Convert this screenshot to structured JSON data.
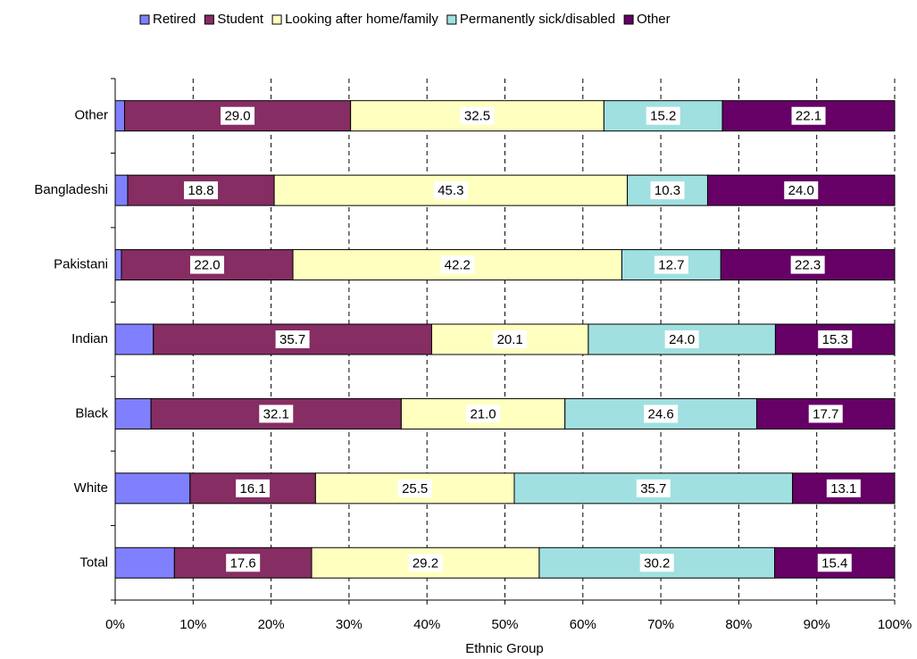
{
  "chart_data": {
    "type": "stacked-bar-horizontal",
    "x_label": "Ethnic Group",
    "categories": [
      "Other",
      "Bangladeshi",
      "Pakistani",
      "Indian",
      "Black",
      "White",
      "Total"
    ],
    "series": [
      {
        "name": "Retired",
        "color": "#8080ff",
        "values": [
          1.2,
          1.6,
          0.8,
          4.9,
          4.6,
          9.6,
          7.6
        ]
      },
      {
        "name": "Student",
        "color": "#862d63",
        "values": [
          29.0,
          18.8,
          22.0,
          35.7,
          32.1,
          16.1,
          17.6
        ],
        "value_labels": [
          "29.0",
          "18.8",
          "22.0",
          "35.7",
          "32.1",
          "16.1",
          "17.6"
        ]
      },
      {
        "name": "Looking after home/family",
        "color": "#ffffc0",
        "values": [
          32.5,
          45.3,
          42.2,
          20.1,
          21.0,
          25.5,
          29.2
        ],
        "value_labels": [
          "32.5",
          "45.3",
          "42.2",
          "20.1",
          "21.0",
          "25.5",
          "29.2"
        ]
      },
      {
        "name": "Permanently sick/disabled",
        "color": "#a0e0e0",
        "values": [
          15.2,
          10.3,
          12.7,
          24.0,
          24.6,
          35.7,
          30.2
        ],
        "value_labels": [
          "15.2",
          "10.3",
          "12.7",
          "24.0",
          "24.6",
          "35.7",
          "30.2"
        ]
      },
      {
        "name": "Other",
        "color": "#660066",
        "values": [
          22.1,
          24.0,
          22.3,
          15.3,
          17.7,
          13.1,
          15.4
        ],
        "value_labels": [
          "22.1",
          "24.0",
          "22.3",
          "15.3",
          "17.7",
          "13.1",
          "15.4"
        ]
      }
    ],
    "xlim": [
      0,
      100
    ],
    "xticks": [
      {
        "value": 0,
        "label": "0%"
      },
      {
        "value": 10,
        "label": "10%"
      },
      {
        "value": 20,
        "label": "20%"
      },
      {
        "value": 30,
        "label": "30%"
      },
      {
        "value": 40,
        "label": "40%"
      },
      {
        "value": 50,
        "label": "50%"
      },
      {
        "value": 60,
        "label": "60%"
      },
      {
        "value": 70,
        "label": "70%"
      },
      {
        "value": 80,
        "label": "80%"
      },
      {
        "value": 90,
        "label": "90%"
      },
      {
        "value": 100,
        "label": "100%"
      }
    ],
    "grid": true,
    "legend": "top"
  }
}
